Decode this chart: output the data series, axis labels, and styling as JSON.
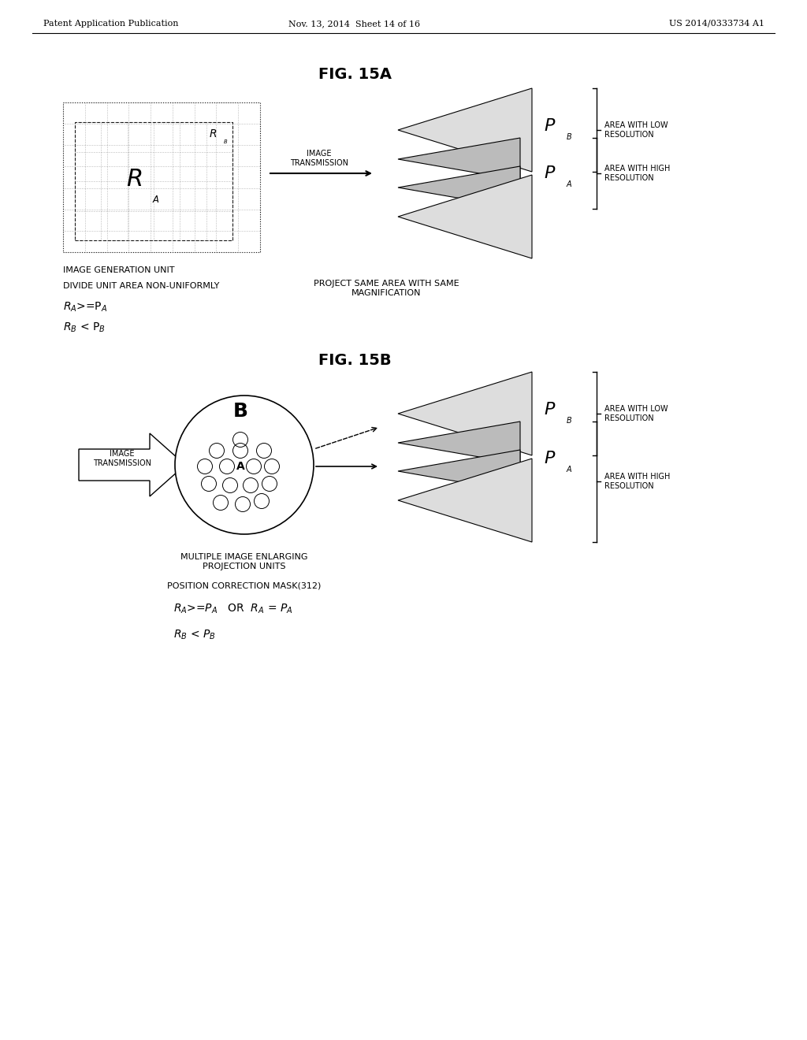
{
  "header_left": "Patent Application Publication",
  "header_mid": "Nov. 13, 2014  Sheet 14 of 16",
  "header_right": "US 2014/0333734 A1",
  "fig15a_title": "FIG. 15A",
  "fig15b_title": "FIG. 15B",
  "bg_color": "#ffffff",
  "text_color": "#000000",
  "gray_color": "#bbbbbb",
  "light_color": "#dddddd",
  "img_trans_label": "IMAGE\nTRANSMISSION",
  "fig15a_caption1": "IMAGE GENERATION UNIT",
  "fig15a_caption2": "DIVIDE UNIT AREA NON-UNIFORMLY",
  "fig15a_right_caption": "PROJECT SAME AREA WITH SAME\nMAGNIFICATION",
  "area_low_res": "AREA WITH LOW\nRESOLUTION",
  "area_high_res": "AREA WITH HIGH\nRESOLUTION",
  "fig15b_caption1": "MULTIPLE IMAGE ENLARGING\nPROJECTION UNITS",
  "fig15b_caption2": "POSITION CORRECTION MASK(312)"
}
